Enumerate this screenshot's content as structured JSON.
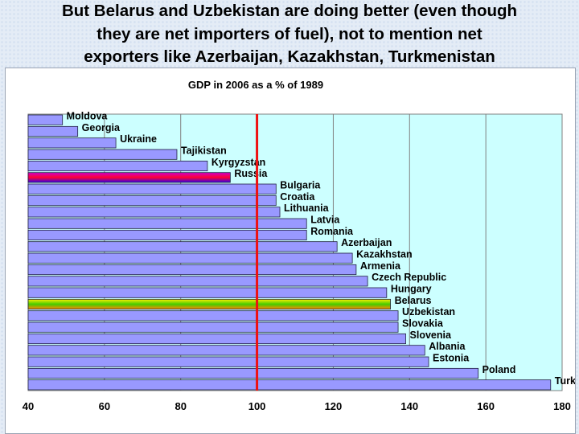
{
  "slide": {
    "title_lines": [
      "But Belarus and Uzbekistan are doing better (even though",
      "they are net importers of fuel), not to mention net",
      "exporters like Azerbaijan, Kazakhstan, Turkmenistan"
    ]
  },
  "chart_data": {
    "type": "bar",
    "orientation": "horizontal",
    "title": "GDP in 2006 as a % of 1989",
    "categories": [
      "Moldova",
      "Georgia",
      "Ukraine",
      "Tajikistan",
      "Kyrgyzstan",
      "Russia",
      "Bulgaria",
      "Croatia",
      "Lithuania",
      "Latvia",
      "Romania",
      "Azerbaijan",
      "Kazakhstan",
      "Armenia",
      "Czech Republic",
      "Hungary",
      "Belarus",
      "Uzbekistan",
      "Slovakia",
      "Slovenia",
      "Albania",
      "Estonia",
      "Poland",
      "Turkmenistan"
    ],
    "values": [
      49,
      53,
      63,
      79,
      87,
      93,
      105,
      105,
      106,
      113,
      113,
      121,
      125,
      126,
      129,
      134,
      135,
      137,
      137,
      139,
      144,
      145,
      158,
      177
    ],
    "xlim": [
      40,
      180
    ],
    "xticks": [
      40,
      60,
      80,
      100,
      120,
      140,
      160,
      180
    ],
    "reference_line": 100,
    "grid": true,
    "legend": "none",
    "colors": {
      "bar": "#9999ff",
      "bar_border": "#222244",
      "plot_background": "#ccffff",
      "reference_line": "#ee1111",
      "russia_gradient": [
        "#cc00cc",
        "#ff0033",
        "#3300ee"
      ],
      "belarus_gradient": [
        "#ffee00",
        "#44cc00",
        "#ff8800"
      ]
    },
    "highlighted": {
      "Russia": "russia_gradient",
      "Belarus": "belarus_gradient"
    }
  }
}
